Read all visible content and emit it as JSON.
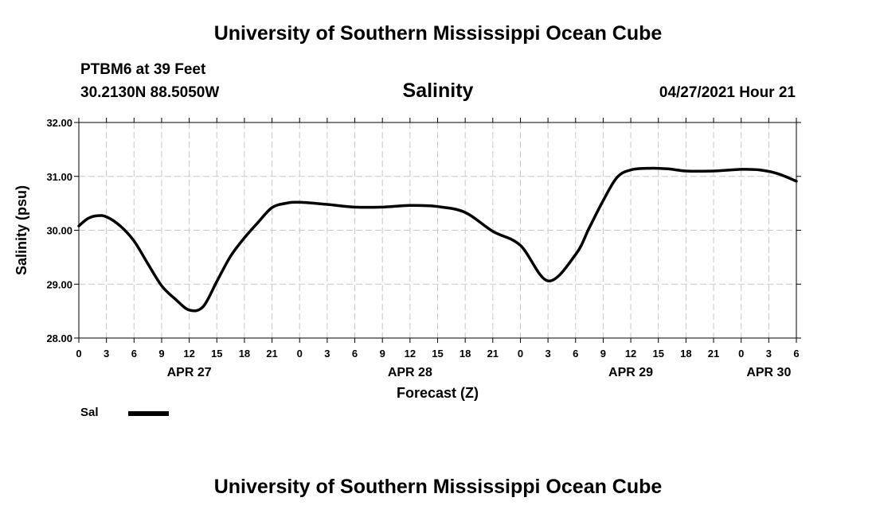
{
  "header": {
    "title": "University of Southern Mississippi Ocean Cube",
    "station": "PTBM6 at 39 Feet",
    "coordinates": "30.2130N  88.5050W",
    "variable": "Salinity",
    "timestamp": "04/27/2021 Hour 21"
  },
  "footer": {
    "title": "University of Southern Mississippi Ocean Cube"
  },
  "legend": {
    "label": "Sal",
    "color": "#000000"
  },
  "chart_data": {
    "type": "line",
    "title": "Salinity",
    "xlabel": "Forecast (Z)",
    "ylabel": "Salinity (psu)",
    "ylim": [
      28.0,
      32.0
    ],
    "xlim": [
      0,
      78
    ],
    "x_unit": "hours since APR 27 00Z (approx. start of plot)",
    "yticks": [
      "28.00",
      "29.00",
      "30.00",
      "31.00",
      "32.00"
    ],
    "xtick_labels": [
      "0",
      "3",
      "6",
      "9",
      "12",
      "15",
      "18",
      "21",
      "0",
      "3",
      "6",
      "9",
      "12",
      "15",
      "18",
      "21",
      "0",
      "3",
      "6",
      "9",
      "12",
      "15",
      "18",
      "21",
      "0",
      "3",
      "6"
    ],
    "date_labels": [
      {
        "label": "APR 27",
        "tick_index": 4
      },
      {
        "label": "APR 28",
        "tick_index": 12
      },
      {
        "label": "APR 29",
        "tick_index": 20
      },
      {
        "label": "APR 30",
        "tick_index": 25
      }
    ],
    "grid": true,
    "series": [
      {
        "name": "Sal",
        "color": "#000000",
        "x": [
          0,
          1,
          2,
          3,
          4.5,
          6,
          7.5,
          9,
          10.5,
          12,
          13.5,
          15,
          16.5,
          18,
          19.5,
          21,
          22.5,
          24,
          27,
          30,
          33,
          36,
          39,
          42,
          45,
          48,
          51,
          54,
          55.5,
          57,
          58.5,
          60,
          62,
          64,
          66,
          69,
          72,
          74,
          76,
          78
        ],
        "values": [
          30.08,
          30.22,
          30.27,
          30.25,
          30.08,
          29.8,
          29.38,
          28.97,
          28.72,
          28.52,
          28.58,
          29.05,
          29.52,
          29.86,
          30.15,
          30.42,
          30.5,
          30.52,
          30.48,
          30.43,
          30.43,
          30.46,
          30.44,
          30.33,
          29.98,
          29.72,
          29.06,
          29.55,
          30.05,
          30.55,
          30.98,
          31.12,
          31.15,
          31.14,
          31.1,
          31.1,
          31.13,
          31.12,
          31.05,
          30.91
        ]
      }
    ]
  }
}
